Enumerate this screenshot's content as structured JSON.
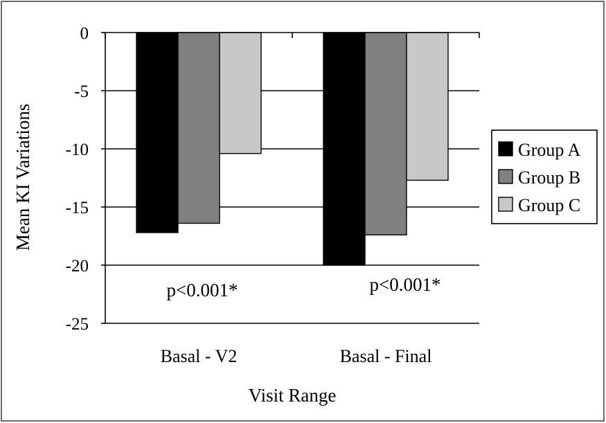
{
  "chart_data": {
    "type": "bar",
    "xlabel": "Visit Range",
    "ylabel": "Mean KI Variations",
    "ylim": [
      -25,
      0
    ],
    "yticks": [
      "0",
      "-5",
      "-10",
      "-15",
      "-20",
      "-25"
    ],
    "ytick_values": [
      0,
      -5,
      -10,
      -15,
      -20,
      -25
    ],
    "grid": true,
    "legend_position": "right",
    "categories": [
      "Basal - V2",
      "Basal - Final"
    ],
    "series": [
      {
        "name": "Group A",
        "color": "#000000",
        "values": [
          -17.2,
          -20.0
        ]
      },
      {
        "name": "Group B",
        "color": "#808080",
        "values": [
          -16.4,
          -17.4
        ]
      },
      {
        "name": "Group C",
        "color": "#c8c8c8",
        "values": [
          -10.4,
          -12.7
        ]
      }
    ],
    "annotations": [
      "p<0.001*",
      "p<0.001*"
    ]
  }
}
